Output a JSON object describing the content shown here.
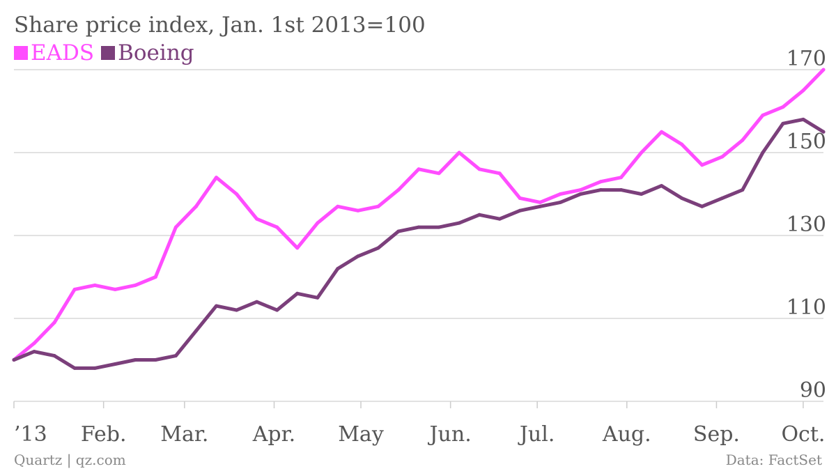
{
  "chart_data": {
    "type": "line",
    "title": "Share price index, Jan. 1st 2013=100",
    "xlabel": "",
    "ylabel": "",
    "ylim": [
      90,
      170
    ],
    "yticks": [
      90,
      110,
      130,
      150,
      170
    ],
    "x_ticks": [
      "’13",
      "Feb.",
      "Mar.",
      "Apr.",
      "May",
      "Jun.",
      "Jul.",
      "Aug.",
      "Sep.",
      "Oct."
    ],
    "x": [
      "2013-01-01",
      "2013-01-08",
      "2013-01-15",
      "2013-01-22",
      "2013-01-29",
      "2013-02-05",
      "2013-02-12",
      "2013-02-19",
      "2013-02-26",
      "2013-03-05",
      "2013-03-12",
      "2013-03-19",
      "2013-03-26",
      "2013-04-02",
      "2013-04-09",
      "2013-04-16",
      "2013-04-23",
      "2013-04-30",
      "2013-05-07",
      "2013-05-14",
      "2013-05-21",
      "2013-05-28",
      "2013-06-04",
      "2013-06-11",
      "2013-06-18",
      "2013-06-25",
      "2013-07-02",
      "2013-07-09",
      "2013-07-16",
      "2013-07-23",
      "2013-07-30",
      "2013-08-06",
      "2013-08-13",
      "2013-08-20",
      "2013-08-27",
      "2013-09-03",
      "2013-09-10",
      "2013-09-17",
      "2013-09-24",
      "2013-10-01",
      "2013-10-08"
    ],
    "series": [
      {
        "name": "EADS",
        "color": "#ff4dff",
        "values": [
          100,
          104,
          109,
          117,
          118,
          117,
          118,
          120,
          132,
          137,
          144,
          140,
          134,
          132,
          127,
          133,
          137,
          136,
          137,
          141,
          146,
          145,
          150,
          146,
          145,
          139,
          138,
          140,
          141,
          143,
          144,
          150,
          155,
          152,
          147,
          149,
          153,
          159,
          161,
          165,
          170
        ]
      },
      {
        "name": "Boeing",
        "color": "#7b3f7b",
        "values": [
          100,
          102,
          101,
          98,
          98,
          99,
          100,
          100,
          101,
          107,
          113,
          112,
          114,
          112,
          116,
          115,
          122,
          125,
          127,
          131,
          132,
          132,
          133,
          135,
          134,
          136,
          137,
          138,
          140,
          141,
          141,
          140,
          142,
          139,
          137,
          139,
          141,
          150,
          157,
          158,
          155
        ]
      }
    ]
  },
  "footer": {
    "source_left": "Quartz | qz.com",
    "source_right": "Data: FactSet"
  }
}
